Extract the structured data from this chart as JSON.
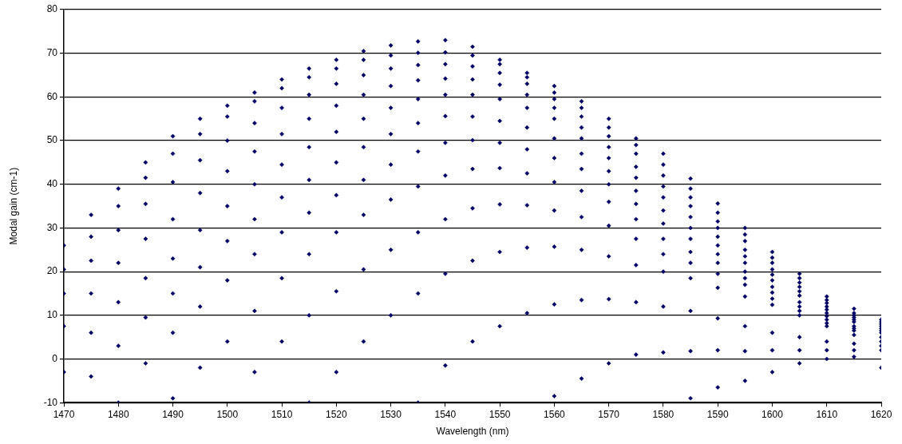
{
  "chart_data": {
    "type": "scatter",
    "xlabel": "Wavelength (nm)",
    "ylabel": "Modal gain (cm-1)",
    "marker": "diamond",
    "grid": "y",
    "xlim": [
      1470,
      1620
    ],
    "xticks": [
      1470,
      1480,
      1490,
      1500,
      1510,
      1520,
      1530,
      1540,
      1550,
      1560,
      1570,
      1580,
      1590,
      1600,
      1610,
      1620
    ],
    "ylim": [
      -10,
      80
    ],
    "yticks": [
      -10,
      0,
      10,
      20,
      30,
      40,
      50,
      60,
      70,
      80
    ],
    "x": [
      1470,
      1475,
      1480,
      1485,
      1490,
      1495,
      1500,
      1505,
      1510,
      1515,
      1520,
      1525,
      1530,
      1535,
      1540,
      1545,
      1550,
      1555,
      1560,
      1565,
      1570,
      1575,
      1580,
      1585,
      1590,
      1595,
      1600,
      1605,
      1610,
      1615,
      1620
    ],
    "series": [
      {
        "color": "#000066",
        "values": [
          26,
          33,
          39,
          45,
          51,
          55,
          58,
          61,
          64,
          66.5,
          68.5,
          70.5,
          71.8,
          72.7,
          73,
          71.5,
          68.5,
          65.5,
          62.5,
          59,
          55,
          50.5,
          47,
          41.3,
          35.6,
          30,
          24.5,
          19.5,
          14.3,
          11.5,
          9
        ]
      },
      {
        "color": "#000066",
        "values": [
          20.5,
          28,
          35,
          41.5,
          47,
          51.5,
          55.5,
          59,
          62,
          64.5,
          66.5,
          68.5,
          69.5,
          70.1,
          70.2,
          69.5,
          67.5,
          64.5,
          61,
          57.5,
          53,
          49,
          44.5,
          39,
          33.5,
          28.5,
          23.2,
          18.5,
          13.5,
          10.5,
          8.5
        ]
      },
      {
        "color": "#000066",
        "values": [
          15,
          22.5,
          29.5,
          35.5,
          40.5,
          45.5,
          50,
          54,
          57.5,
          60.5,
          63,
          65,
          66.5,
          67.3,
          67.5,
          67,
          65.5,
          63,
          59.5,
          55.5,
          51,
          47,
          42,
          37,
          31.5,
          27,
          22,
          17.5,
          12.8,
          10,
          8
        ]
      },
      {
        "color": "#000066",
        "values": [
          7.5,
          15,
          22,
          27.5,
          32,
          38,
          43,
          47.5,
          51.5,
          55,
          58,
          60.5,
          62.5,
          63.8,
          64.2,
          64,
          62.8,
          60.5,
          57.5,
          53,
          48.5,
          44,
          39.5,
          35,
          30,
          25,
          20.5,
          16.5,
          12,
          9.5,
          7.5
        ]
      },
      {
        "color": "#000066",
        "values": [
          -3,
          6,
          13,
          18.5,
          23,
          29.5,
          35,
          40,
          44.5,
          48.5,
          52,
          55,
          57.5,
          59.5,
          60.5,
          60.5,
          59.5,
          57.5,
          55,
          50.5,
          46,
          41.5,
          37,
          32.5,
          28,
          23.5,
          19.3,
          15.5,
          11.3,
          9,
          7
        ]
      },
      {
        "color": "#000066",
        "values": [
          null,
          -4,
          3,
          9.5,
          15,
          21,
          27,
          32,
          37,
          41,
          45,
          48.5,
          51.5,
          54,
          55.6,
          55.5,
          54.5,
          53,
          50.5,
          47,
          43,
          38.5,
          34,
          30,
          26,
          22,
          18,
          14.5,
          10.5,
          8.5,
          6.5
        ]
      },
      {
        "color": "#000066",
        "values": [
          null,
          null,
          -10,
          -1,
          6,
          12,
          18,
          24,
          29,
          33.5,
          37.5,
          41,
          44.5,
          47.5,
          49.5,
          50.1,
          49.5,
          48,
          46,
          43.5,
          40,
          35.5,
          31,
          27.5,
          24,
          20,
          16.5,
          13,
          9.8,
          7.5,
          6
        ]
      },
      {
        "color": "#000066",
        "values": [
          null,
          null,
          null,
          null,
          -9,
          -2,
          4,
          11,
          18.5,
          24,
          29,
          33,
          36.5,
          39.5,
          42,
          43.5,
          43.7,
          42.5,
          40.5,
          38.5,
          36,
          32,
          27.5,
          24.5,
          22,
          18.5,
          15.2,
          12,
          9,
          7,
          null
        ]
      },
      {
        "color": "#000066",
        "values": [
          null,
          null,
          null,
          null,
          null,
          null,
          null,
          -3,
          4,
          10,
          15.5,
          20.5,
          25,
          29,
          32,
          34.5,
          35.4,
          35.2,
          34,
          32.5,
          30.5,
          27.5,
          24,
          22,
          19.5,
          17,
          13.8,
          11,
          8.2,
          6.5,
          5
        ]
      },
      {
        "color": "#000066",
        "values": [
          null,
          null,
          null,
          null,
          null,
          null,
          null,
          null,
          null,
          -10,
          -3,
          4,
          10,
          15,
          19.5,
          22.5,
          24.5,
          25.5,
          25.7,
          25,
          23.5,
          21.5,
          20,
          18.5,
          16.3,
          14.3,
          12.4,
          10,
          7.5,
          5.5,
          4
        ]
      },
      {
        "color": "#000066",
        "values": [
          null,
          null,
          null,
          null,
          null,
          null,
          null,
          null,
          null,
          null,
          null,
          null,
          null,
          -10,
          -1.5,
          4,
          7.5,
          10.5,
          12.5,
          13.5,
          13.7,
          13,
          12,
          11,
          9.3,
          7.5,
          6,
          5,
          4,
          3.5,
          3
        ]
      },
      {
        "color": "#000066",
        "values": [
          null,
          null,
          null,
          null,
          null,
          null,
          null,
          null,
          null,
          null,
          null,
          null,
          null,
          null,
          null,
          null,
          null,
          null,
          -8.5,
          -4.5,
          -1,
          1,
          1.5,
          1.8,
          2,
          1.8,
          2,
          2,
          2,
          2,
          2
        ]
      },
      {
        "color": "#000066",
        "values": [
          null,
          null,
          null,
          null,
          null,
          null,
          null,
          null,
          null,
          null,
          null,
          null,
          null,
          null,
          null,
          null,
          null,
          null,
          null,
          null,
          null,
          null,
          null,
          -9,
          -6.5,
          -5,
          -3,
          -1,
          0,
          0.5,
          -2
        ]
      }
    ]
  }
}
